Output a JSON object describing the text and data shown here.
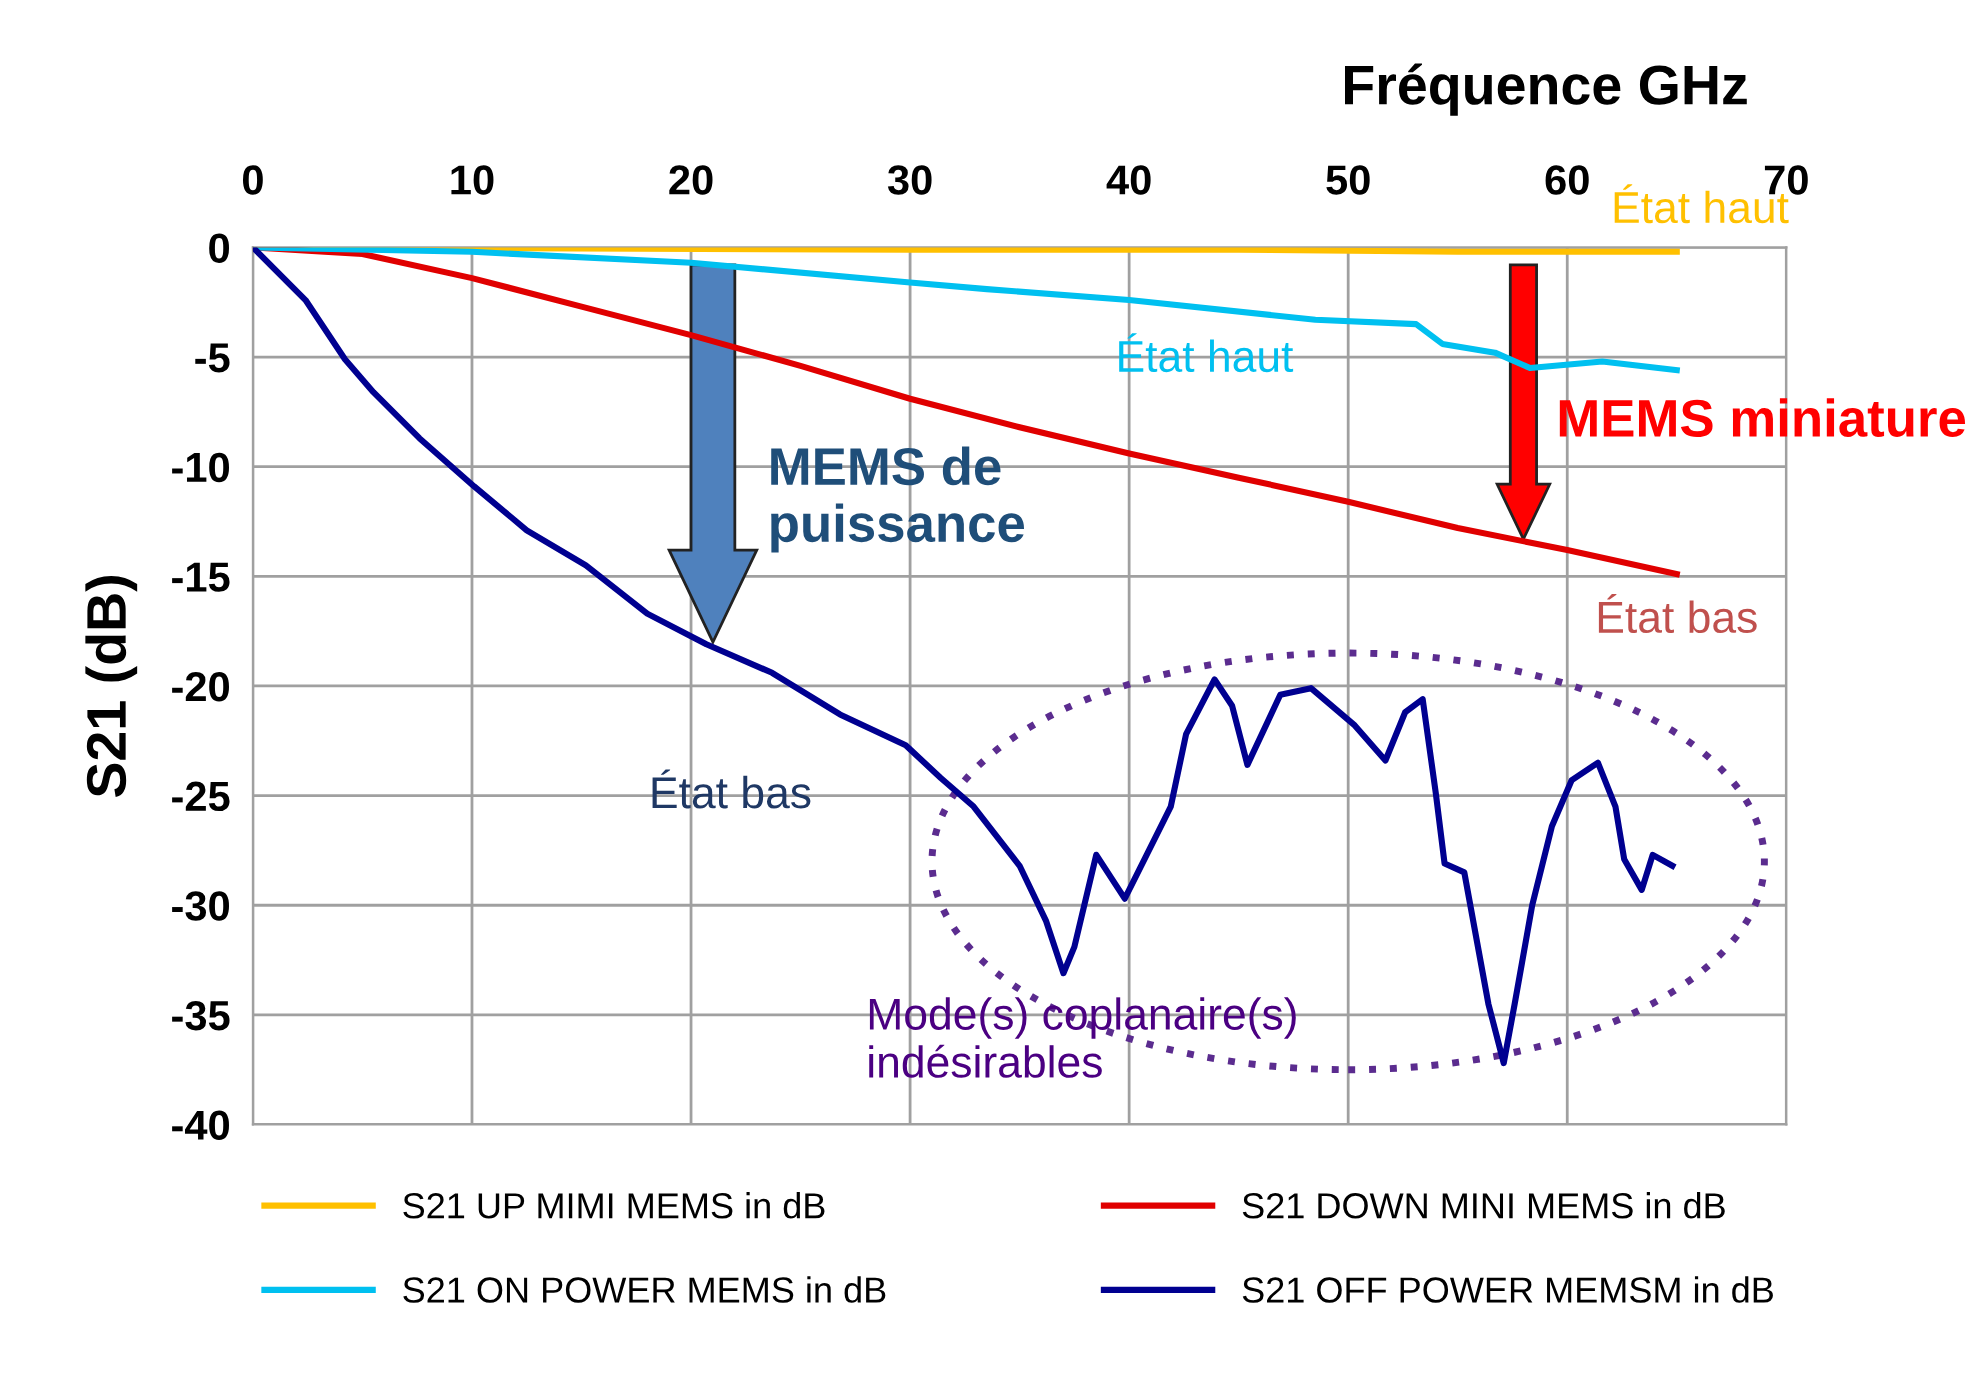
{
  "chart_data": {
    "type": "line",
    "xlabel": "Fréquence GHz",
    "ylabel": "S21 (dB)",
    "xlim": [
      0,
      70
    ],
    "xticks": [
      0,
      10,
      20,
      30,
      40,
      50,
      60,
      70
    ],
    "ylim": [
      -40,
      0
    ],
    "yticks": [
      -40,
      -35,
      -30,
      -25,
      -20,
      -15,
      -10,
      -5,
      0
    ],
    "grid": true,
    "legend": "bottom",
    "marker": "none",
    "line_style": "solid",
    "series": [
      {
        "name": "S21 UP MIMI MEMS in dB",
        "color": "#ffc000",
        "x": [
          0,
          30,
          45,
          55,
          65
        ],
        "values": [
          0,
          -0.1,
          -0.1,
          -0.2,
          -0.2
        ]
      },
      {
        "name": "S21 DOWN MINI MEMS in dB",
        "color": "#e00000",
        "x": [
          0,
          5,
          10,
          15,
          20,
          25,
          30,
          35,
          40,
          45,
          50,
          55,
          60,
          65
        ],
        "values": [
          0,
          -0.3,
          -1.4,
          -2.7,
          -4.0,
          -5.4,
          -6.9,
          -8.2,
          -9.4,
          -10.5,
          -11.6,
          -12.8,
          -13.8,
          -14.9
        ]
      },
      {
        "name": "S21 ON POWER MEMS in dB",
        "color": "#00c0f0",
        "x": [
          0,
          10,
          20,
          30,
          33.5,
          40,
          48.5,
          53.1,
          54.3,
          56.7,
          58.3,
          61.6,
          65
        ],
        "values": [
          0,
          -0.2,
          -0.7,
          -1.6,
          -1.9,
          -2.4,
          -3.3,
          -3.5,
          -4.4,
          -4.8,
          -5.5,
          -5.2,
          -5.6
        ]
      },
      {
        "name": "S21 OFF POWER MEMSM in dB",
        "color": "#000090",
        "x": [
          0,
          2.4,
          4.2,
          5.5,
          7.6,
          10.1,
          12.5,
          15.2,
          18.0,
          20.7,
          23.7,
          26.8,
          29.8,
          31.4,
          32.9,
          35.0,
          36.2,
          37.0,
          37.5,
          38.5,
          39.8,
          40.8,
          41.9,
          42.6,
          43.9,
          44.7,
          45.4,
          46.9,
          48.3,
          50.3,
          51.7,
          52.6,
          53.4,
          54.0,
          54.4,
          55.3,
          56.4,
          57.1,
          57.6,
          58.4,
          59.3,
          60.2,
          61.4,
          62.2,
          62.6,
          63.4,
          63.9,
          64.8
        ],
        "values": [
          0,
          -2.4,
          -5.1,
          -6.6,
          -8.7,
          -10.9,
          -12.9,
          -14.5,
          -16.7,
          -18.1,
          -19.4,
          -21.3,
          -22.7,
          -24.2,
          -25.5,
          -28.2,
          -30.7,
          -33.1,
          -31.9,
          -27.7,
          -29.7,
          -27.7,
          -25.5,
          -22.2,
          -19.7,
          -20.9,
          -23.6,
          -20.4,
          -20.1,
          -21.8,
          -23.4,
          -21.2,
          -20.6,
          -24.9,
          -28.1,
          -28.5,
          -34.5,
          -37.2,
          -34.5,
          -30.0,
          -26.4,
          -24.3,
          -23.5,
          -25.5,
          -27.9,
          -29.3,
          -27.7,
          -28.2
        ]
      }
    ],
    "annotations": [
      {
        "text": "État haut",
        "x": 65,
        "y": -0.2
      },
      {
        "text": "État haut",
        "x": 48.5,
        "y": -3.3
      },
      {
        "text": "État bas",
        "x": 65,
        "y": -14.9
      },
      {
        "text": "État bas",
        "x": 26.8,
        "y": -21.3
      },
      {
        "text": "MEMS de puissance",
        "x": 21,
        "y": -18.0
      },
      {
        "text": "MEMS miniature",
        "x": 58,
        "y": -13.3
      },
      "Mode(s) coplanaire(s) indésirables"
    ]
  }
}
